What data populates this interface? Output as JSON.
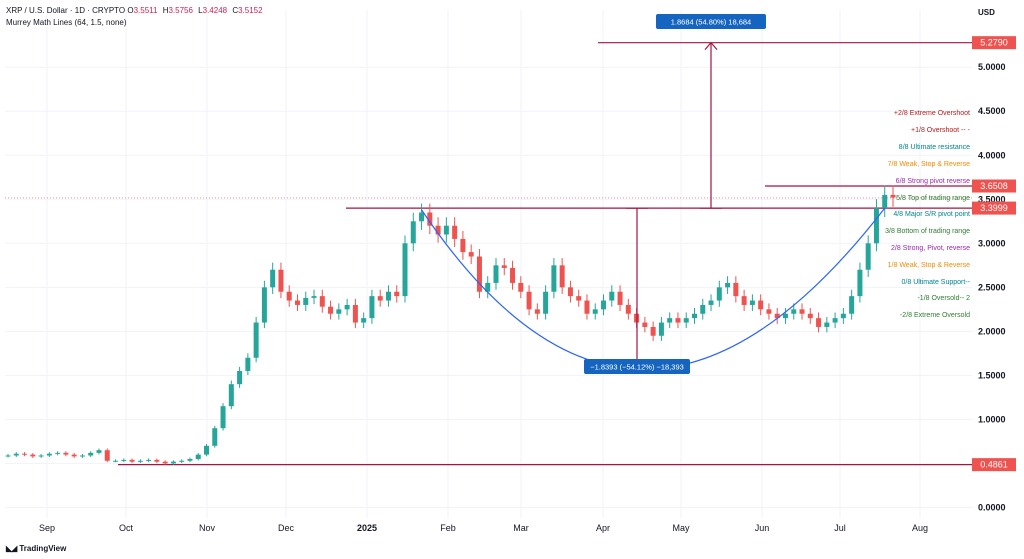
{
  "header": {
    "symbol": "XRP / U.S. Dollar · 1D · CRYPTO",
    "ohlc": [
      {
        "k": "O",
        "v": "3.5511"
      },
      {
        "k": "H",
        "v": "3.5756"
      },
      {
        "k": "L",
        "v": "3.4248"
      },
      {
        "k": "C",
        "v": "3.5152"
      }
    ],
    "indicator": "Murrey Math Lines (64, 1.5, none)"
  },
  "currency": "USD",
  "brand": "TradingView",
  "chart_data": {
    "type": "line",
    "x_ticks": [
      "Sep",
      "Oct",
      "Nov",
      "Dec",
      "2025",
      "Feb",
      "Mar",
      "Apr",
      "May",
      "Jun",
      "Jul",
      "Aug"
    ],
    "y_ticks": [
      "0.0000",
      "0.5000",
      "1.0000",
      "1.5000",
      "2.0000",
      "2.5000",
      "3.0000",
      "3.5000",
      "4.0000",
      "4.5000",
      "5.0000"
    ],
    "ylim": [
      -0.12,
      5.65
    ],
    "series": [
      {
        "values": [
          0.59,
          0.61,
          0.6,
          0.58,
          0.59,
          0.61,
          0.62,
          0.6,
          0.58,
          0.59,
          0.62,
          0.65,
          0.53,
          0.53,
          0.54,
          0.52,
          0.53,
          0.54,
          0.52,
          0.5,
          0.52,
          0.53,
          0.55,
          0.6,
          0.7,
          0.9,
          1.15,
          1.4,
          1.55,
          1.7,
          2.1,
          2.5,
          2.7,
          2.45,
          2.35,
          2.3,
          2.38,
          2.4,
          2.28,
          2.2,
          2.25,
          2.3,
          2.1,
          2.15,
          2.4,
          2.35,
          2.45,
          2.4,
          3.0,
          3.25,
          3.35,
          3.2,
          3.1,
          3.2,
          3.05,
          2.9,
          2.85,
          2.45,
          2.55,
          2.75,
          2.72,
          2.55,
          2.45,
          2.25,
          2.2,
          2.45,
          2.75,
          2.5,
          2.4,
          2.35,
          2.2,
          2.25,
          2.35,
          2.45,
          2.3,
          2.2,
          2.1,
          2.05,
          1.95,
          2.1,
          2.15,
          2.1,
          2.15,
          2.2,
          2.3,
          2.35,
          2.5,
          2.55,
          2.4,
          2.3,
          2.35,
          2.25,
          2.2,
          2.15,
          2.2,
          2.25,
          2.2,
          2.15,
          2.05,
          2.1,
          2.15,
          2.2,
          2.4,
          2.7,
          3.0,
          3.4,
          3.55,
          3.52
        ]
      }
    ],
    "mml_levels": [
      {
        "label": "+2/8 Extreme Overshoot",
        "color": "#b71c1c"
      },
      {
        "label": "+1/8 Overshoot -- -",
        "color": "#b71c1c"
      },
      {
        "label": "8/8 Ultimate resistance",
        "color": "#00838f"
      },
      {
        "label": "7/8 Weak, Stop & Reverse",
        "color": "#ef8c00"
      },
      {
        "label": "6/8 Strong pivot reverse",
        "color": "#9c27b0"
      },
      {
        "label": "5/8 Top of trading range",
        "color": "#2e7d32"
      },
      {
        "label": "4/8 Major S/R pivot point",
        "color": "#00838f"
      },
      {
        "label": "3/8 Bottom of trading range",
        "color": "#2e7d32"
      },
      {
        "label": "2/8 Strong, Pivot, reverse",
        "color": "#9c27b0"
      },
      {
        "label": "1/8 Weak, Stop & Reverse",
        "color": "#ef8c00"
      },
      {
        "label": "0/8 Ultimate Support--",
        "color": "#00838f"
      },
      {
        "label": "-1/8 Oversold-- 2",
        "color": "#2e7d32"
      },
      {
        "label": "-2/8 Extreme Oversold",
        "color": "#2e7d32"
      }
    ],
    "price_labels": [
      {
        "text": "5.2790",
        "value": 5.279
      },
      {
        "text": "3.6508",
        "value": 3.6508
      },
      {
        "text": "3.3999",
        "value": 3.3999
      },
      {
        "text": "0.4861",
        "value": 0.4861
      }
    ],
    "hlines": [
      5.279,
      3.6508,
      3.3999,
      0.4861
    ],
    "measure_up": {
      "from": 3.4,
      "to": 5.279,
      "label": "1.8684 (54.80%) 18,684"
    },
    "measure_down": {
      "from": 3.4,
      "to": 1.56,
      "label": "−1.8393 (−54.12%) −18,393"
    },
    "colors": {
      "up": "#26a69a",
      "down": "#ef5350",
      "level": "#a3143f",
      "curve": "#2962ff",
      "measure": "#1565c0"
    }
  }
}
